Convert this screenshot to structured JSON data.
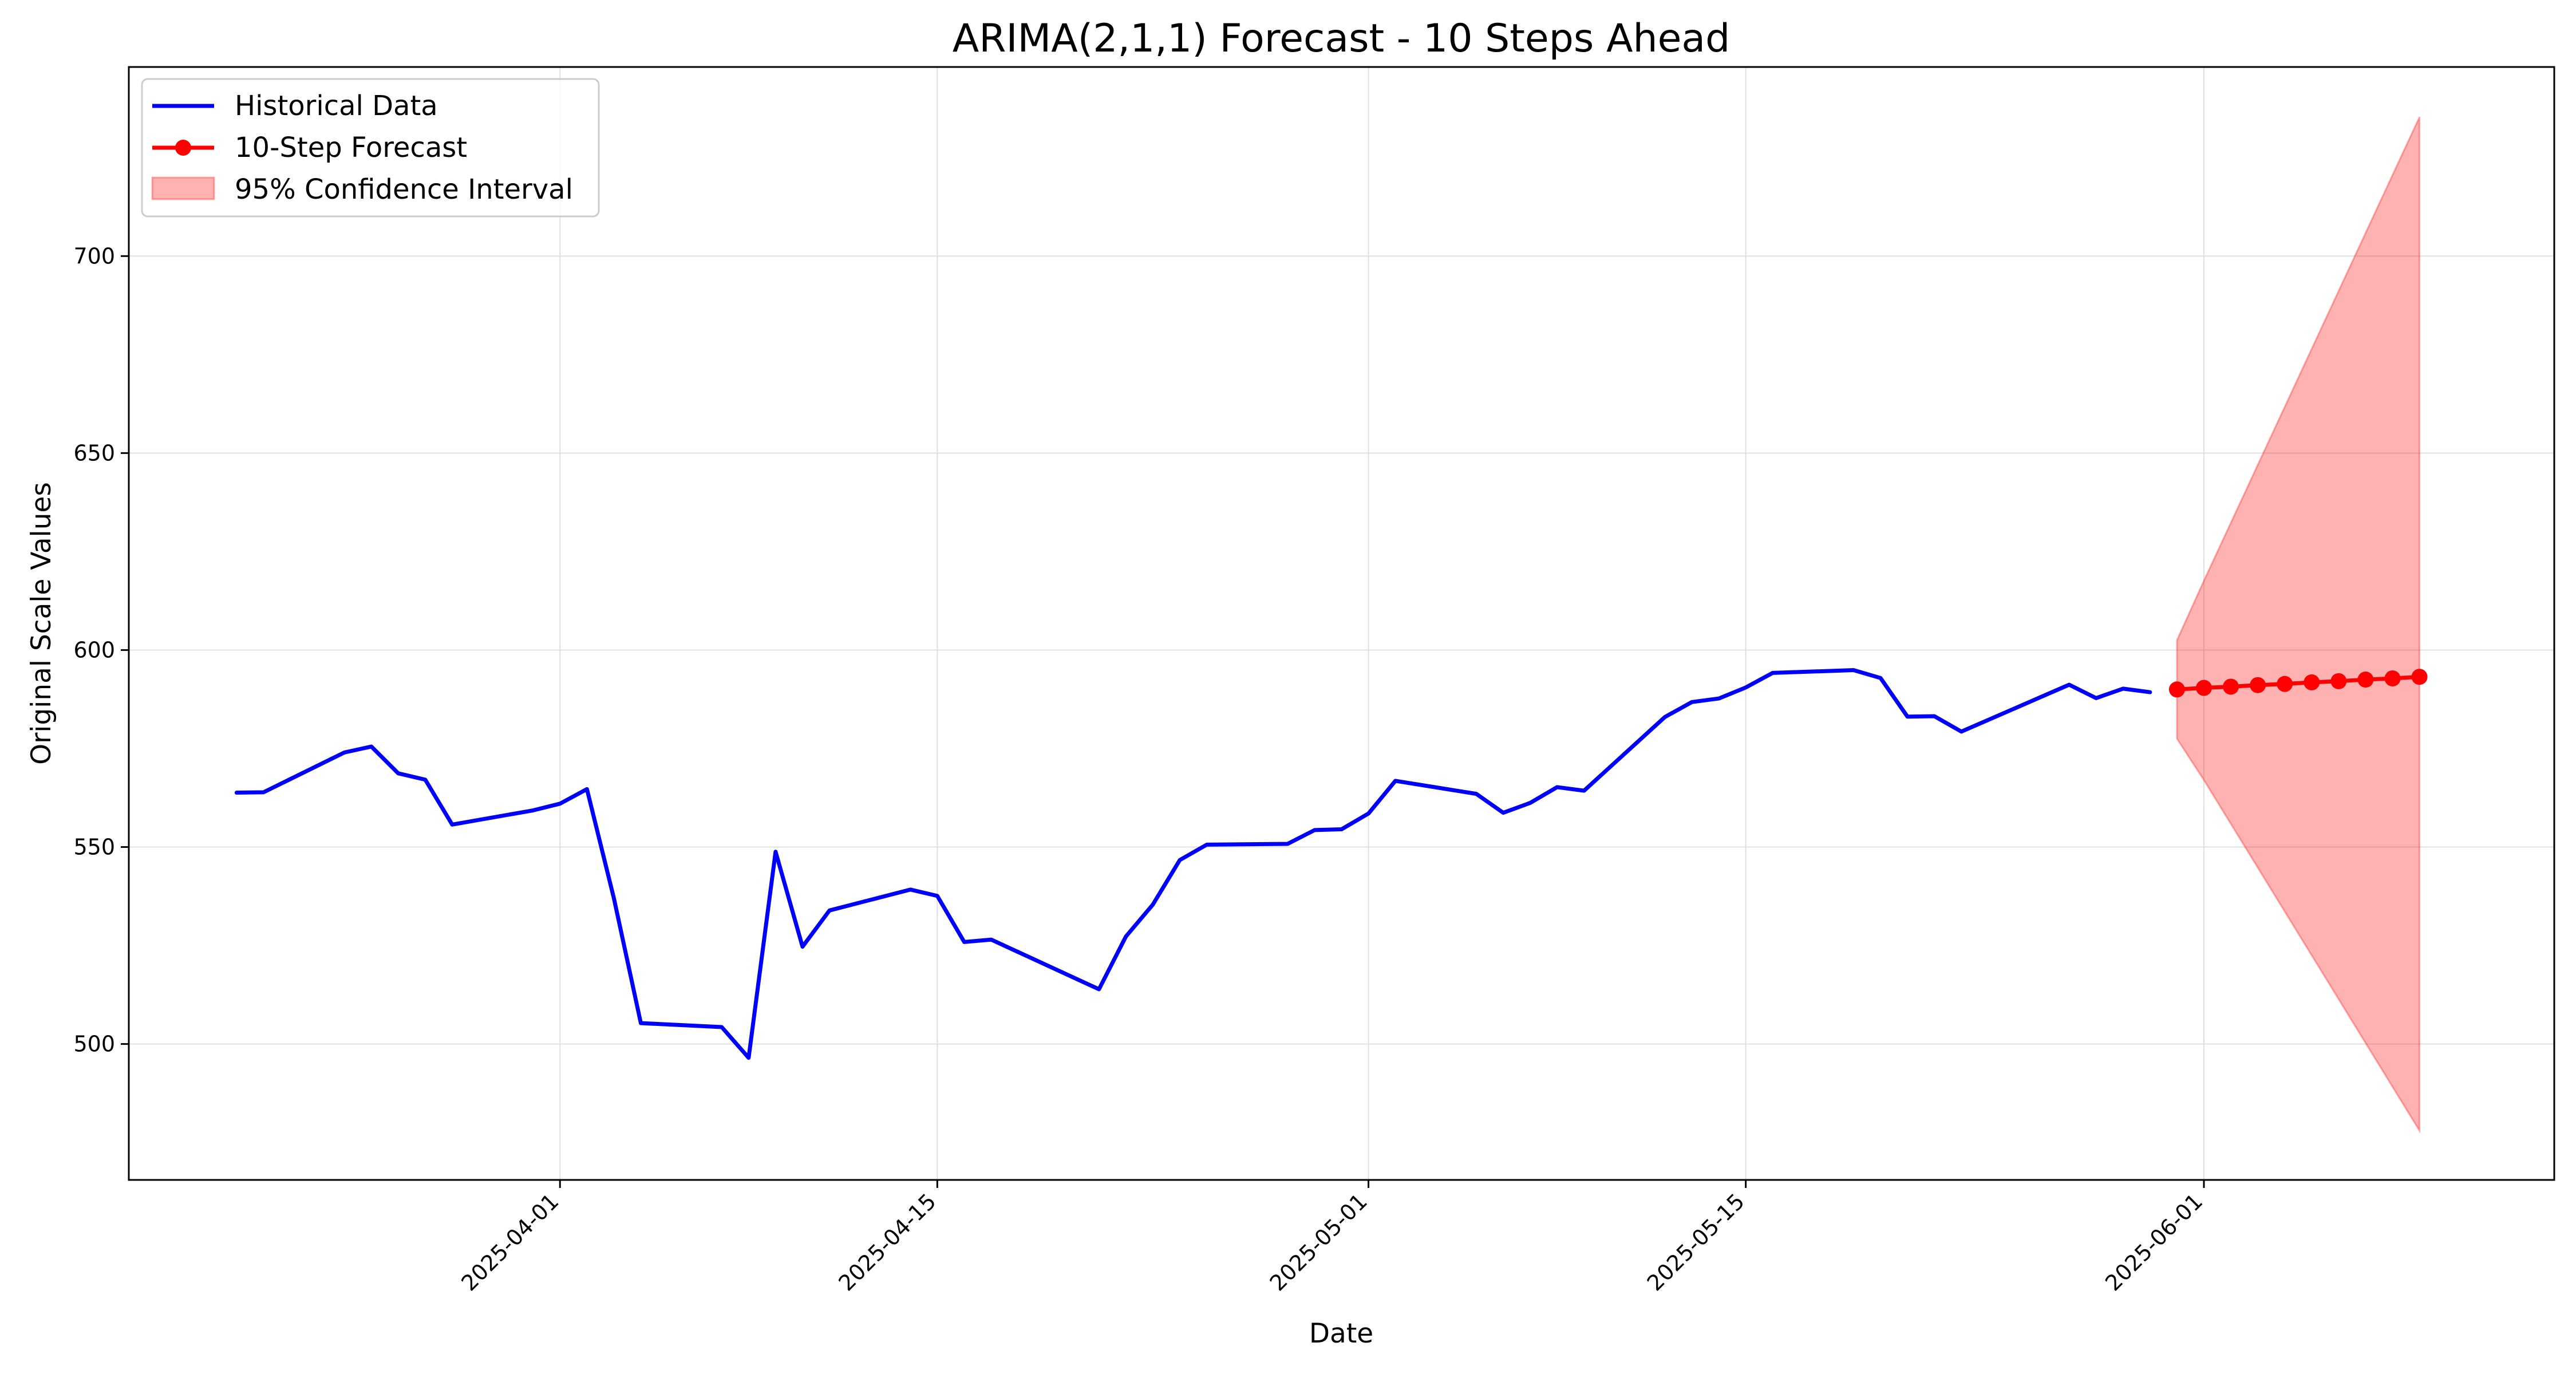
{
  "chart_data": {
    "type": "line",
    "title": "ARIMA(2,1,1) Forecast - 10 Steps Ahead",
    "xlabel": "Date",
    "ylabel": "Original Scale Values",
    "x_tick_labels": [
      "2025-04-01",
      "2025-04-15",
      "2025-05-01",
      "2025-05-15",
      "2025-06-01"
    ],
    "y_tick_labels": [
      "500",
      "550",
      "600",
      "650",
      "700"
    ],
    "ylim": [
      465.5,
      748.0
    ],
    "xlim": [
      "2025-03-16",
      "2025-06-14"
    ],
    "grid": true,
    "legend_position": "top-left",
    "series": [
      {
        "name": "Historical Data",
        "color": "#0000ff",
        "style": "line",
        "points": [
          [
            "2025-03-20",
            563.8
          ],
          [
            "2025-03-21",
            563.9
          ],
          [
            "2025-03-24",
            574.0
          ],
          [
            "2025-03-25",
            575.5
          ],
          [
            "2025-03-26",
            568.7
          ],
          [
            "2025-03-27",
            567.1
          ],
          [
            "2025-03-28",
            555.7
          ],
          [
            "2025-03-31",
            559.3
          ],
          [
            "2025-04-01",
            561.0
          ],
          [
            "2025-04-02",
            564.7
          ],
          [
            "2025-04-03",
            537.0
          ],
          [
            "2025-04-04",
            505.3
          ],
          [
            "2025-04-07",
            504.3
          ],
          [
            "2025-04-08",
            496.5
          ],
          [
            "2025-04-09",
            548.8
          ],
          [
            "2025-04-10",
            524.7
          ],
          [
            "2025-04-11",
            533.9
          ],
          [
            "2025-04-14",
            539.2
          ],
          [
            "2025-04-15",
            537.6
          ],
          [
            "2025-04-16",
            525.9
          ],
          [
            "2025-04-17",
            526.5
          ],
          [
            "2025-04-21",
            513.9
          ],
          [
            "2025-04-22",
            527.3
          ],
          [
            "2025-04-23",
            535.4
          ],
          [
            "2025-04-24",
            546.7
          ],
          [
            "2025-04-25",
            550.6
          ],
          [
            "2025-04-28",
            550.8
          ],
          [
            "2025-04-29",
            554.3
          ],
          [
            "2025-04-30",
            554.5
          ],
          [
            "2025-05-01",
            558.5
          ],
          [
            "2025-05-02",
            566.8
          ],
          [
            "2025-05-05",
            563.5
          ],
          [
            "2025-05-06",
            558.7
          ],
          [
            "2025-05-07",
            561.2
          ],
          [
            "2025-05-08",
            565.2
          ],
          [
            "2025-05-09",
            564.3
          ],
          [
            "2025-05-12",
            583.0
          ],
          [
            "2025-05-13",
            586.8
          ],
          [
            "2025-05-14",
            587.7
          ],
          [
            "2025-05-15",
            590.5
          ],
          [
            "2025-05-16",
            594.2
          ],
          [
            "2025-05-19",
            594.9
          ],
          [
            "2025-05-20",
            592.9
          ],
          [
            "2025-05-21",
            583.1
          ],
          [
            "2025-05-22",
            583.2
          ],
          [
            "2025-05-23",
            579.3
          ],
          [
            "2025-05-27",
            591.2
          ],
          [
            "2025-05-28",
            587.8
          ],
          [
            "2025-05-29",
            590.2
          ],
          [
            "2025-05-30",
            589.3
          ]
        ]
      },
      {
        "name": "10-Step Forecast",
        "color": "#ff0000",
        "style": "line-marker",
        "points": [
          [
            "2025-05-31",
            590.0
          ],
          [
            "2025-06-01",
            590.4
          ],
          [
            "2025-06-02",
            590.7
          ],
          [
            "2025-06-03",
            591.1
          ],
          [
            "2025-06-04",
            591.4
          ],
          [
            "2025-06-05",
            591.8
          ],
          [
            "2025-06-06",
            592.1
          ],
          [
            "2025-06-07",
            592.5
          ],
          [
            "2025-06-08",
            592.8
          ],
          [
            "2025-06-09",
            593.2
          ]
        ]
      }
    ],
    "confidence_interval": {
      "name": "95% Confidence Interval",
      "color": "#ff0000",
      "fill_color": "#ffb3b3",
      "upper": [
        [
          "2025-05-31",
          602.5
        ],
        [
          "2025-06-01",
          617.6
        ],
        [
          "2025-06-09",
          735.3
        ]
      ],
      "lower": [
        [
          "2025-05-31",
          577.5
        ],
        [
          "2025-06-01",
          567.0
        ],
        [
          "2025-06-09",
          478.0
        ]
      ]
    }
  }
}
